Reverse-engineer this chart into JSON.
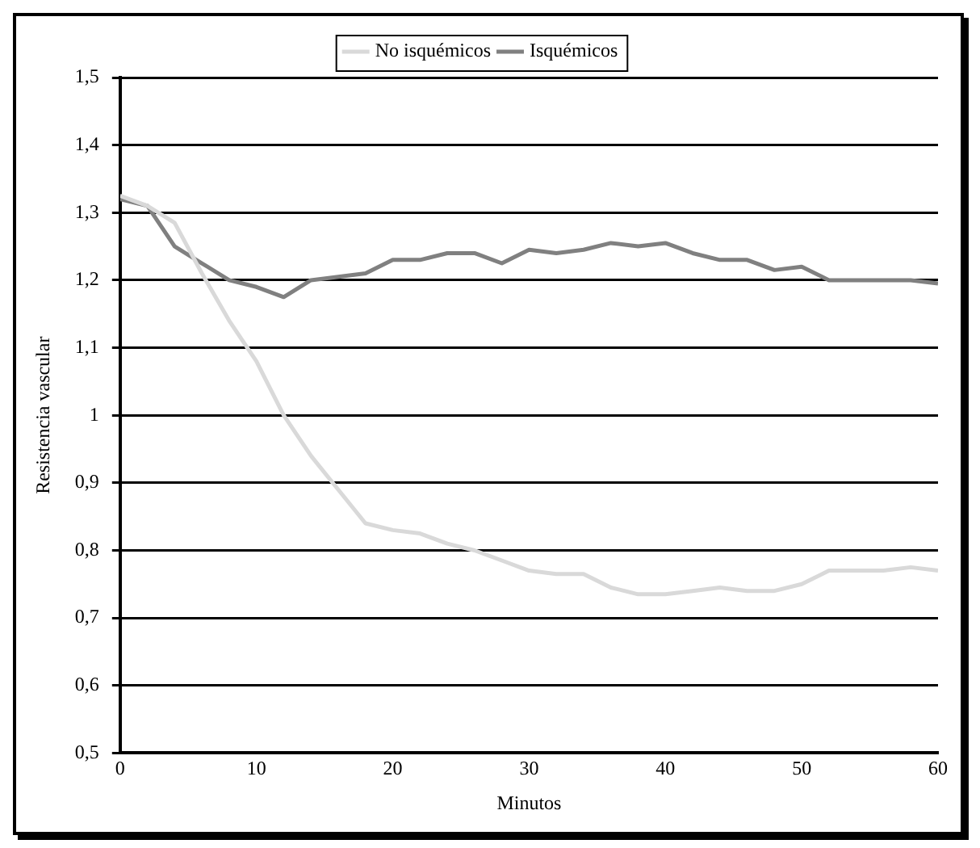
{
  "chart_data": {
    "type": "line",
    "xlabel": "Minutos",
    "ylabel": "Resistencia vascular",
    "x": [
      0,
      2,
      4,
      6,
      8,
      10,
      12,
      14,
      16,
      18,
      20,
      22,
      24,
      26,
      28,
      30,
      32,
      34,
      36,
      38,
      40,
      42,
      44,
      46,
      48,
      50,
      52,
      54,
      56,
      58,
      60
    ],
    "series": [
      {
        "name": "No isquémicos",
        "color": "#d9d9d9",
        "values": [
          1.325,
          1.31,
          1.285,
          1.21,
          1.14,
          1.08,
          1.0,
          0.94,
          0.89,
          0.84,
          0.83,
          0.825,
          0.81,
          0.8,
          0.785,
          0.77,
          0.765,
          0.765,
          0.745,
          0.735,
          0.735,
          0.74,
          0.745,
          0.74,
          0.74,
          0.75,
          0.77,
          0.77,
          0.77,
          0.775,
          0.77
        ]
      },
      {
        "name": "Isquémicos",
        "color": "#808080",
        "values": [
          1.32,
          1.31,
          1.25,
          1.225,
          1.2,
          1.19,
          1.175,
          1.2,
          1.205,
          1.21,
          1.23,
          1.23,
          1.24,
          1.24,
          1.225,
          1.245,
          1.24,
          1.245,
          1.255,
          1.25,
          1.255,
          1.24,
          1.23,
          1.23,
          1.215,
          1.22,
          1.2,
          1.2,
          1.2,
          1.2,
          1.195
        ]
      }
    ],
    "xlim": [
      0,
      60
    ],
    "xticks": [
      0,
      10,
      20,
      30,
      40,
      50,
      60
    ],
    "ylim": [
      0.5,
      1.5
    ],
    "yticks": [
      {
        "value": 0.5,
        "label": "0,5"
      },
      {
        "value": 0.6,
        "label": "0,6"
      },
      {
        "value": 0.7,
        "label": "0,7"
      },
      {
        "value": 0.8,
        "label": "0,8"
      },
      {
        "value": 0.9,
        "label": "0,9"
      },
      1,
      {
        "value": 1.1,
        "label": "1,1"
      },
      {
        "value": 1.2,
        "label": "1,2"
      },
      {
        "value": 1.3,
        "label": "1,3"
      },
      {
        "value": 1.4,
        "label": "1,4"
      },
      {
        "value": 1.5,
        "label": "1,5"
      }
    ],
    "grid": "y",
    "legend": "top",
    "marker": "none",
    "line_style": "solid"
  }
}
